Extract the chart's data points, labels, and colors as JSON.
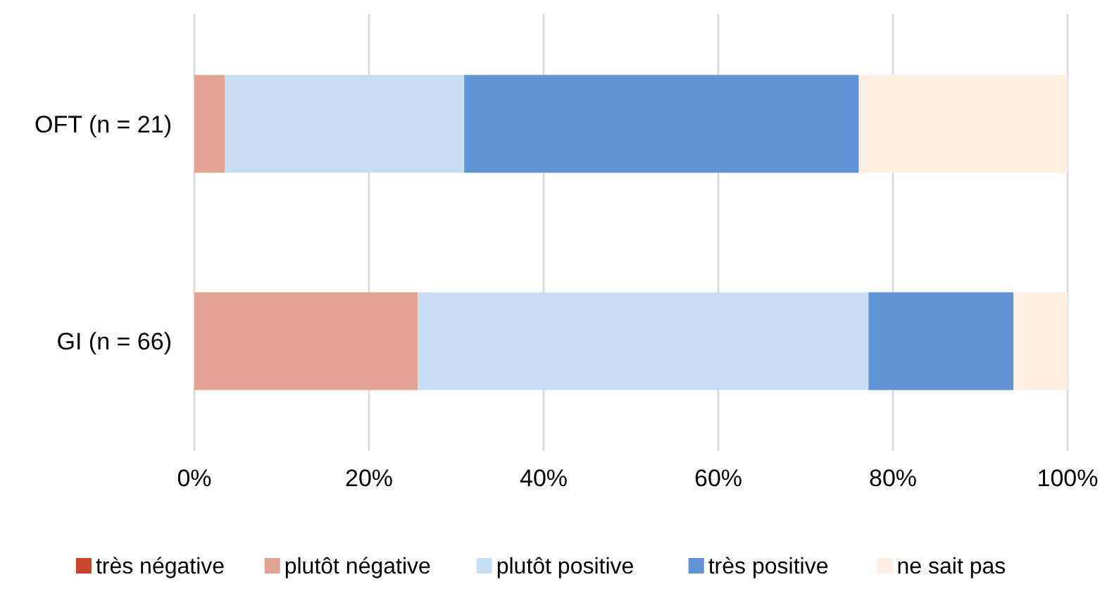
{
  "chart_data": {
    "type": "bar",
    "orientation": "horizontal",
    "stacked": true,
    "categories": [
      "OFT (n = 21)",
      "GI (n = 66)"
    ],
    "series": [
      {
        "name": "très négative",
        "color": "#c9442c",
        "values": [
          0,
          0
        ]
      },
      {
        "name": "plutôt négative",
        "color": "#e3a393",
        "values": [
          3.5,
          25.6
        ]
      },
      {
        "name": "plutôt positive",
        "color": "#c8dff3",
        "values": [
          27.4,
          51.6
        ]
      },
      {
        "name": "très positive",
        "color": "#6194d4",
        "values": [
          45.2,
          16.6
        ]
      },
      {
        "name": "ne sait pas",
        "color": "#fdefe2",
        "values": [
          23.9,
          6.2
        ]
      }
    ],
    "xlim": [
      0,
      100
    ],
    "xticks": [
      {
        "value": 0,
        "label": "0%"
      },
      {
        "value": 20,
        "label": "20%"
      },
      {
        "value": 40,
        "label": "40%"
      },
      {
        "value": 60,
        "label": "60%"
      },
      {
        "value": 80,
        "label": "80%"
      },
      {
        "value": 100,
        "label": "100%"
      }
    ],
    "grid": "x",
    "legend": "bottom"
  }
}
